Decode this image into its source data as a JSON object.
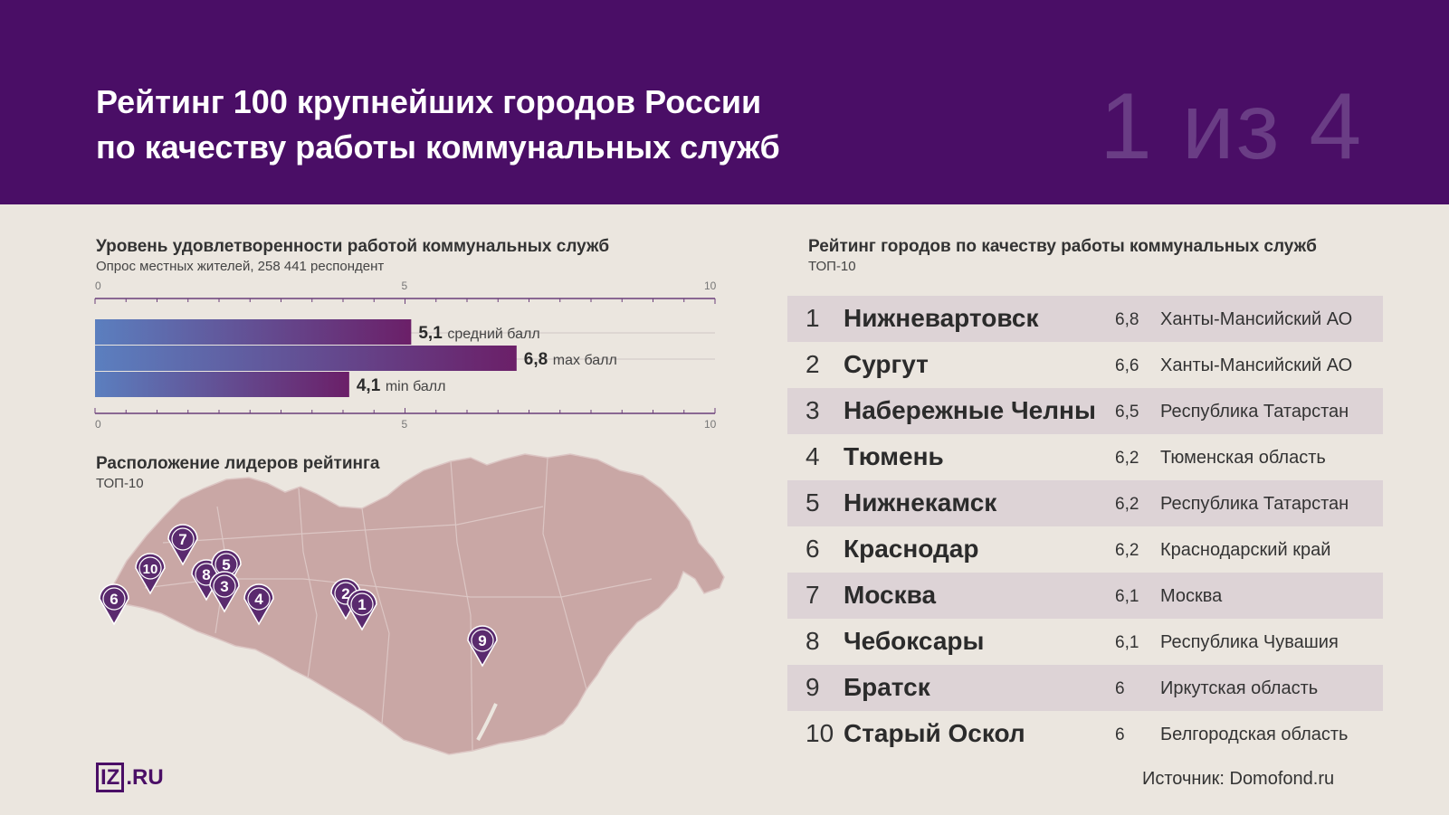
{
  "header": {
    "title_line1": "Рейтинг 100 крупнейших городов России",
    "title_line2": "по качеству работы коммунальных служб",
    "page_counter": "1 из 4"
  },
  "satisfaction": {
    "title": "Уровень удовлетворенности работой коммунальных служб",
    "subtitle": "Опрос местных жителей, 258 441 респондент"
  },
  "map_section": {
    "title": "Расположение лидеров рейтинга",
    "subtitle": "ТОП-10",
    "marker_labels": [
      "1",
      "2",
      "3",
      "4",
      "5",
      "6",
      "7",
      "8",
      "9",
      "10"
    ]
  },
  "ranking": {
    "title": "Рейтинг городов по качеству работы коммунальных служб",
    "subtitle": "ТОП-10",
    "rows": [
      {
        "rank": "1",
        "city": "Нижневартовск",
        "score": "6,8",
        "region": "Ханты-Мансийский АО"
      },
      {
        "rank": "2",
        "city": "Сургут",
        "score": "6,6",
        "region": "Ханты-Мансийский АО"
      },
      {
        "rank": "3",
        "city": "Набережные Челны",
        "score": "6,5",
        "region": "Республика Татарстан"
      },
      {
        "rank": "4",
        "city": "Тюмень",
        "score": "6,2",
        "region": "Тюменская область"
      },
      {
        "rank": "5",
        "city": "Нижнекамск",
        "score": "6,2",
        "region": "Республика Татарстан"
      },
      {
        "rank": "6",
        "city": "Краснодар",
        "score": "6,2",
        "region": "Краснодарский край"
      },
      {
        "rank": "7",
        "city": "Москва",
        "score": "6,1",
        "region": "Москва"
      },
      {
        "rank": "8",
        "city": "Чебоксары",
        "score": "6,1",
        "region": "Республика Чувашия"
      },
      {
        "rank": "9",
        "city": "Братск",
        "score": "6",
        "region": "Иркутская область"
      },
      {
        "rank": "10",
        "city": "Старый Оскол",
        "score": "6",
        "region": "Белгородская область"
      }
    ]
  },
  "source": "Источник: Domofond.ru",
  "logo": {
    "box": "IZ",
    "suffix": ".RU"
  },
  "colors": {
    "header_bg": "#4a0e66",
    "bar_start": "#5b7fbf",
    "bar_end": "#6b1f68",
    "marker": "#5a2a6e",
    "map_land": "#c9a7a5",
    "row_shade": "#ddd3d6"
  },
  "chart_data": {
    "type": "bar",
    "orientation": "horizontal",
    "xlim": [
      0,
      10
    ],
    "x_ticks": [
      "0",
      "5",
      "10"
    ],
    "bars": [
      {
        "value": 5.1,
        "value_label": "5,1",
        "label": "средний балл"
      },
      {
        "value": 6.8,
        "value_label": "6,8",
        "label": "max балл"
      },
      {
        "value": 4.1,
        "value_label": "4,1",
        "label": "min балл"
      }
    ]
  }
}
